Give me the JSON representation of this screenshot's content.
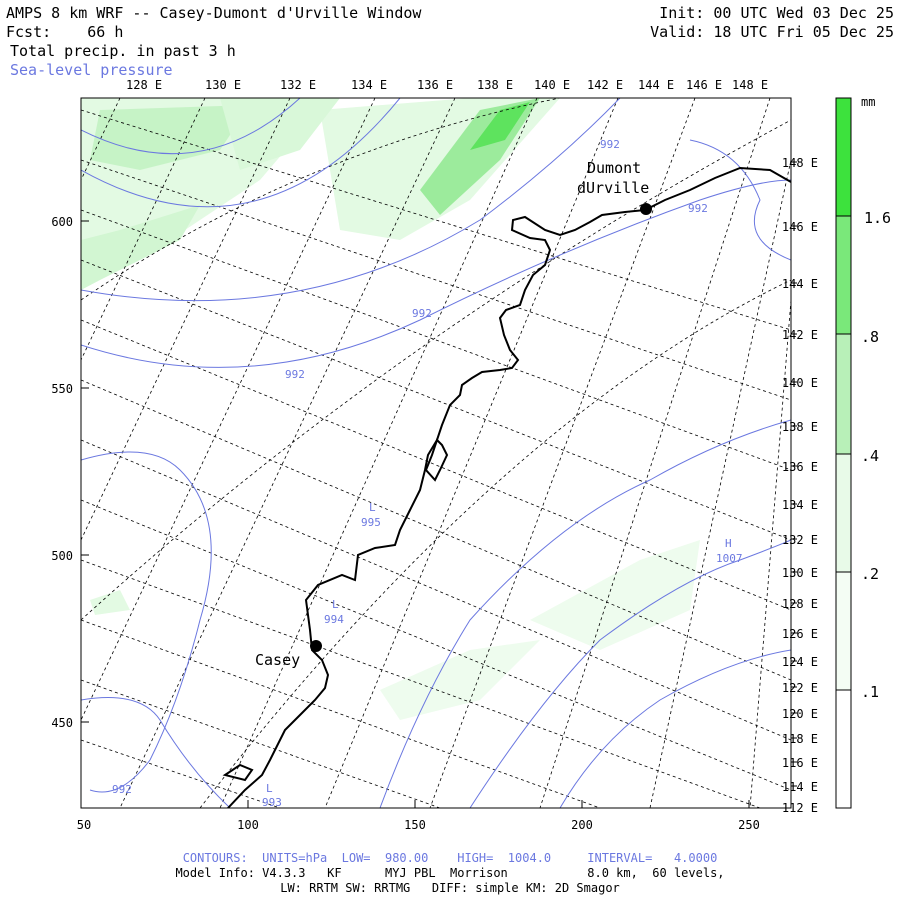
{
  "header": {
    "title": "AMPS 8 km WRF -- Casey-Dumont d'Urville Window",
    "fcst": "Fcst:    66 h",
    "field": "Total precip. in past 3 h",
    "overlay": "Sea-level pressure",
    "init": "Init: 00 UTC Wed 03 Dec 25",
    "valid": "Valid: 18 UTC Fri 05 Dec 25"
  },
  "map": {
    "top_lon_labels": [
      "128 E",
      "130 E",
      "132 E",
      "134 E",
      "136 E",
      "138 E",
      "140 E",
      "142 E",
      "144 E",
      "146 E",
      "148 E"
    ],
    "right_lon_labels": [
      "148 E",
      "146 E",
      "144 E",
      "142 E",
      "140 E",
      "138 E",
      "136 E",
      "134 E",
      "132 E",
      "130 E",
      "128 E",
      "126 E",
      "124 E",
      "122 E",
      "120 E",
      "118 E",
      "116 E",
      "114 E",
      "112 E"
    ],
    "y_ticks": [
      "600",
      "550",
      "500",
      "450"
    ],
    "x_ticks": [
      "50",
      "100",
      "150",
      "200",
      "250"
    ],
    "stations": [
      {
        "name": "Casey"
      },
      {
        "name_line1": "Dumont",
        "name_line2": "dUrville"
      }
    ],
    "contour_labels": [
      "992",
      "992",
      "992",
      "992",
      "992"
    ],
    "pressure_centers": [
      {
        "symbol": "L",
        "value": "995"
      },
      {
        "symbol": "L",
        "value": "994"
      },
      {
        "symbol": "H",
        "value": "1007"
      },
      {
        "symbol": "L",
        "value": "993"
      }
    ],
    "colors": {
      "contour": "#6b78e0",
      "precip_light": "#e3fae3",
      "precip_mid": "#b3f0b3",
      "precip_dark": "#5ee35e",
      "coast": "#000000"
    }
  },
  "colorbar": {
    "unit": "mm",
    "labels": [
      "1.6",
      ".8",
      ".4",
      ".2",
      ".1"
    ],
    "colors": [
      "#3de23d",
      "#7ae87a",
      "#b8f0b8",
      "#e8fae8",
      "#ffffff"
    ]
  },
  "footer": {
    "contours": "CONTOURS:  UNITS=hPa  LOW=  980.00    HIGH=  1004.0     INTERVAL=   4.0000",
    "model": "Model Info: V4.3.3   KF      MYJ PBL  Morrison           8.0 km,  60 levels,",
    "physics": "LW: RRTM SW: RRTMG   DIFF: simple KM: 2D Smagor"
  }
}
